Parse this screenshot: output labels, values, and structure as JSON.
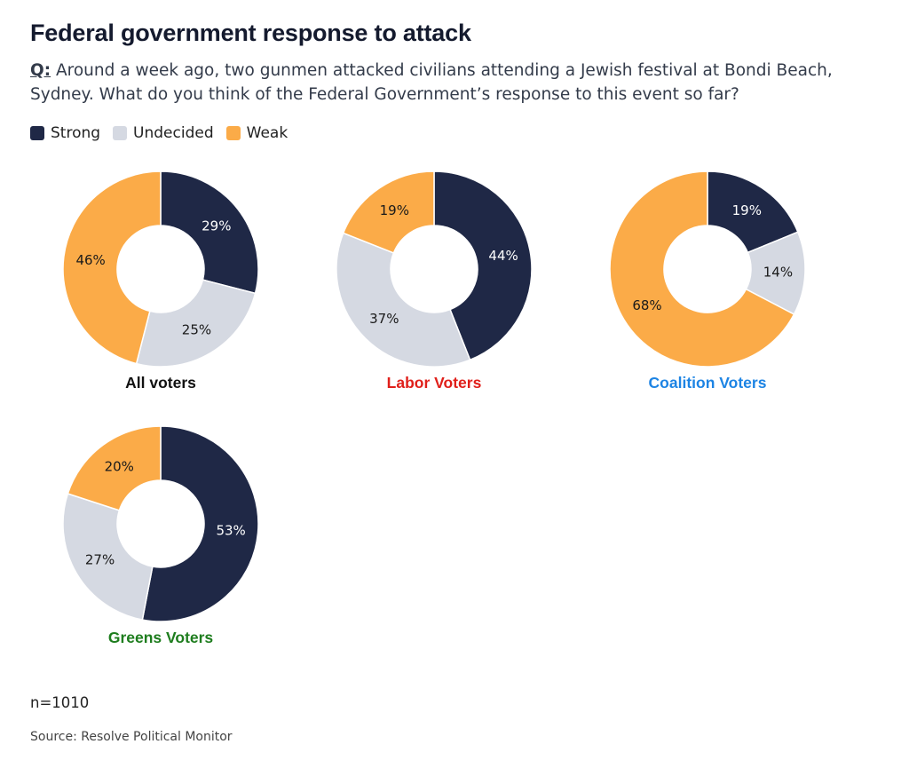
{
  "title": "Federal government response to attack",
  "question": {
    "prefix": "Q:",
    "text": " Around a week ago, two gunmen attacked civilians attending a Jewish festival at Bondi Beach, Sydney. What do you think of the Federal Government’s response to this event so far?"
  },
  "legend": [
    {
      "label": "Strong",
      "color": "#1f2846"
    },
    {
      "label": "Undecided",
      "color": "#d5d9e2"
    },
    {
      "label": "Weak",
      "color": "#fbab48"
    }
  ],
  "chart_data": [
    {
      "type": "pie",
      "title": "All voters",
      "title_color": "#111111",
      "categories": [
        "Strong",
        "Undecided",
        "Weak"
      ],
      "values": [
        29,
        25,
        46
      ],
      "labels": [
        "29%",
        "25%",
        "46%"
      ]
    },
    {
      "type": "pie",
      "title": "Labor Voters",
      "title_color": "#e0201b",
      "categories": [
        "Strong",
        "Undecided",
        "Weak"
      ],
      "values": [
        44,
        37,
        19
      ],
      "labels": [
        "44%",
        "37%",
        "19%"
      ]
    },
    {
      "type": "pie",
      "title": "Coalition Voters",
      "title_color": "#1d84e4",
      "categories": [
        "Strong",
        "Undecided",
        "Weak"
      ],
      "values": [
        19,
        14,
        68
      ],
      "labels": [
        "19%",
        "14%",
        "68%"
      ]
    },
    {
      "type": "pie",
      "title": "Greens Voters",
      "title_color": "#1e7d1e",
      "categories": [
        "Strong",
        "Undecided",
        "Weak"
      ],
      "values": [
        53,
        27,
        20
      ],
      "labels": [
        "53%",
        "27%",
        "20%"
      ]
    }
  ],
  "sample_size": "n=1010",
  "source": "Source: Resolve Political Monitor"
}
